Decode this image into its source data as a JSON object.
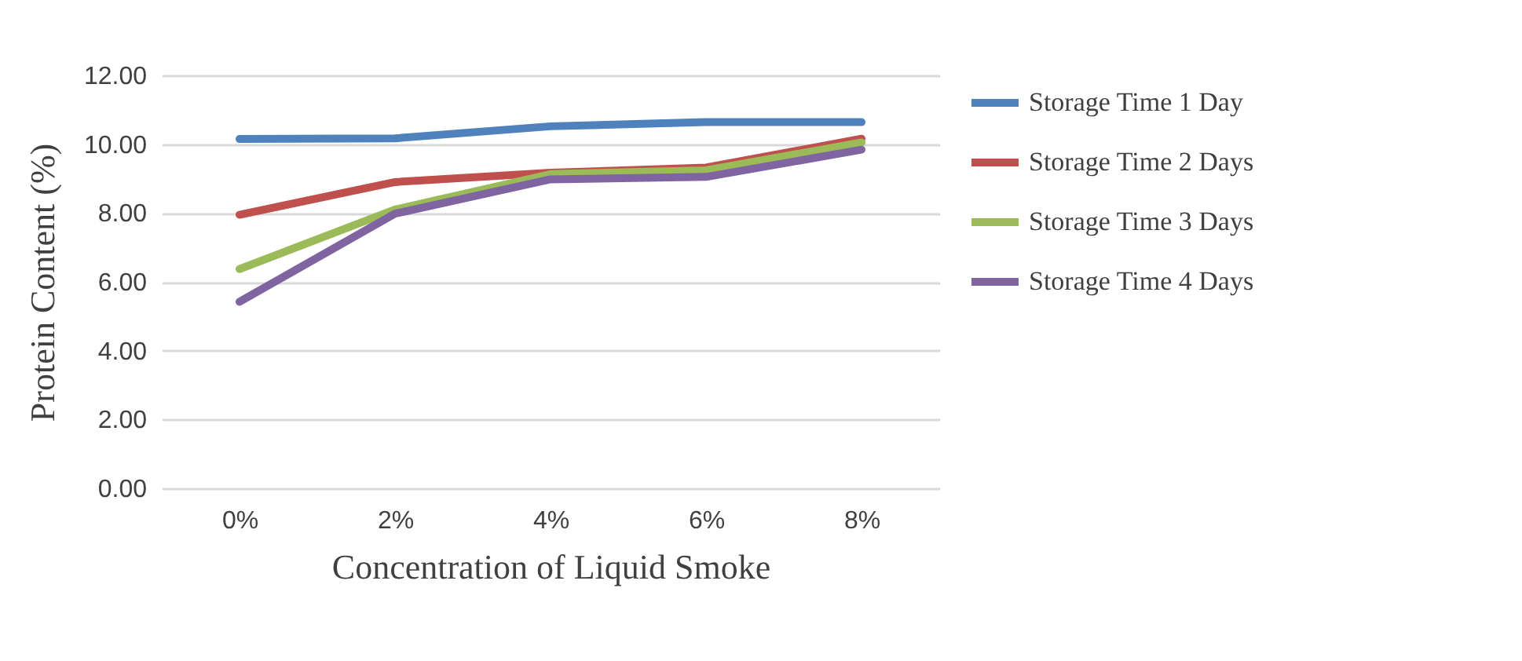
{
  "chart_data": {
    "type": "line",
    "xlabel": "Concentration of Liquid Smoke",
    "ylabel": "Protein Content (%)",
    "categories": [
      "0%",
      "2%",
      "4%",
      "6%",
      "8%"
    ],
    "series": [
      {
        "name": "Storage Time 1 Day",
        "color": "#4f81bd",
        "values": [
          10.15,
          10.17,
          10.52,
          10.64,
          10.64
        ]
      },
      {
        "name": "Storage Time 2 Days",
        "color": "#c0504d",
        "values": [
          7.95,
          8.9,
          9.17,
          9.32,
          10.16
        ]
      },
      {
        "name": "Storage Time 3 Days",
        "color": "#9bbb59",
        "values": [
          6.37,
          8.1,
          9.13,
          9.24,
          10.05
        ]
      },
      {
        "name": "Storage Time 4 Days",
        "color": "#8064a2",
        "values": [
          5.42,
          7.98,
          8.98,
          9.05,
          9.84
        ]
      }
    ],
    "ylim": [
      0,
      12
    ],
    "yticks": [
      {
        "value": 0,
        "label": "0.00"
      },
      {
        "value": 2,
        "label": "2.00"
      },
      {
        "value": 4,
        "label": "4.00"
      },
      {
        "value": 6,
        "label": "6.00"
      },
      {
        "value": 8,
        "label": "8.00"
      },
      {
        "value": 10,
        "label": "10.00"
      },
      {
        "value": 12,
        "label": "12.00"
      }
    ],
    "grid": "y",
    "legend": "right",
    "marker": "none",
    "line_style": "solid"
  }
}
